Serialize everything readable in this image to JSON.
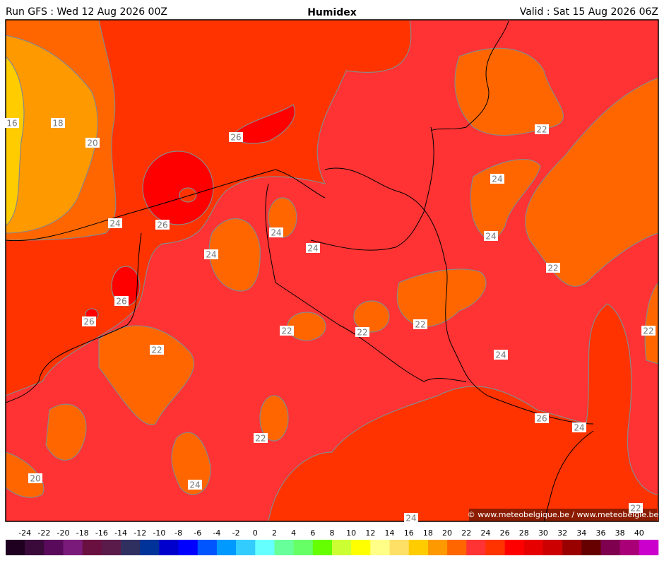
{
  "header": {
    "left": "Run GFS : Wed 12 Aug 2026 00Z",
    "title": "Humidex",
    "right": "Valid : Sat 15 Aug 2026 06Z"
  },
  "map": {
    "contour_labels": [
      "16",
      "18",
      "20",
      "24",
      "26",
      "26",
      "24",
      "24",
      "24",
      "26",
      "26",
      "22",
      "22",
      "22",
      "22",
      "24",
      "22",
      "24",
      "24",
      "22",
      "22",
      "26",
      "24",
      "22",
      "24",
      "20",
      "24",
      "22"
    ],
    "copyright": "© www.meteobelgique.be / www.meteobelgie.be"
  },
  "colorbar": {
    "ticks": [
      -24,
      -22,
      -20,
      -18,
      -16,
      -14,
      -12,
      -10,
      -8,
      -6,
      -4,
      -2,
      0,
      2,
      4,
      6,
      8,
      10,
      12,
      14,
      16,
      18,
      20,
      22,
      24,
      26,
      28,
      30,
      32,
      34,
      36,
      38,
      40
    ],
    "colors": [
      "#200020",
      "#3a0a3a",
      "#5a0a5a",
      "#7a1a7a",
      "#6a1040",
      "#5a1a4a",
      "#303060",
      "#003399",
      "#0000cc",
      "#0000ff",
      "#0055ff",
      "#0099ff",
      "#33ccff",
      "#66ffff",
      "#66ff99",
      "#66ff66",
      "#66ff00",
      "#ccff33",
      "#ffff00",
      "#ffff88",
      "#ffe066",
      "#ffcc00",
      "#ff9900",
      "#ff6600",
      "#ff3333",
      "#ff3300",
      "#ff0000",
      "#e60000",
      "#cc0000",
      "#990000",
      "#660000",
      "#800050",
      "#aa0077",
      "#cc00cc"
    ]
  }
}
